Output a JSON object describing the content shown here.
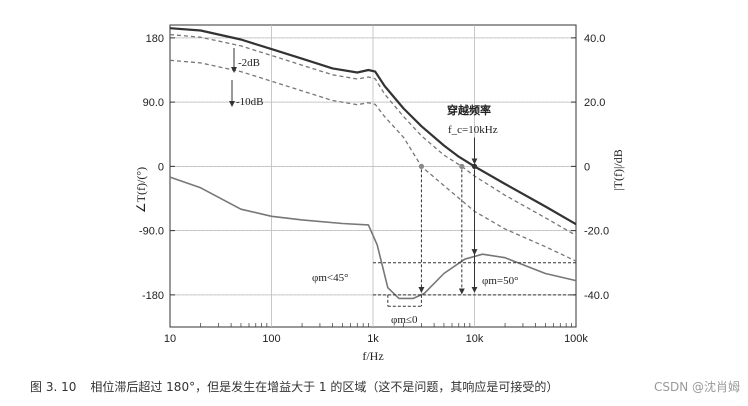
{
  "chart_data": {
    "type": "line",
    "x_scale": "log",
    "xlim": [
      10,
      100000
    ],
    "xlabel": "f/Hz",
    "x_ticks": [
      {
        "value": 10,
        "label": "10"
      },
      {
        "value": 100,
        "label": "100"
      },
      {
        "value": 1000,
        "label": "1k"
      },
      {
        "value": 10000,
        "label": "10k"
      },
      {
        "value": 100000,
        "label": "100k"
      }
    ],
    "left_axis": {
      "label": "∠T(f)/(°)",
      "ylim": [
        -225,
        198
      ],
      "ticks": [
        {
          "value": 180,
          "label": "180"
        },
        {
          "value": 90,
          "label": "90.0"
        },
        {
          "value": 0,
          "label": "0"
        },
        {
          "value": -90,
          "label": "-90.0"
        },
        {
          "value": -180,
          "label": "-180"
        }
      ]
    },
    "right_axis": {
      "label": "|T(f)|/dB",
      "ylim": [
        -50,
        44
      ],
      "ticks": [
        {
          "value": 40,
          "label": "40.0"
        },
        {
          "value": 20,
          "label": "20.0"
        },
        {
          "value": 0,
          "label": "0"
        },
        {
          "value": -20,
          "label": "-20.0"
        },
        {
          "value": -40,
          "label": "-40.0"
        }
      ]
    },
    "grid": true,
    "series": [
      {
        "axis": "right",
        "style": "solid-thick",
        "color": "#333333",
        "points": [
          [
            10,
            43
          ],
          [
            20,
            42.3
          ],
          [
            50,
            39.5
          ],
          [
            100,
            36.5
          ],
          [
            200,
            33.5
          ],
          [
            400,
            30.5
          ],
          [
            700,
            29.2
          ],
          [
            900,
            30.0
          ],
          [
            1050,
            29.5
          ],
          [
            1300,
            25
          ],
          [
            2000,
            18
          ],
          [
            3000,
            12.5
          ],
          [
            5000,
            6.5
          ],
          [
            7000,
            3
          ],
          [
            10000,
            0
          ],
          [
            20000,
            -5.5
          ],
          [
            50000,
            -12.5
          ],
          [
            100000,
            -18
          ]
        ]
      },
      {
        "axis": "right",
        "style": "dashed",
        "color": "#777777",
        "label": "-2dB",
        "points": [
          [
            10,
            41
          ],
          [
            20,
            40.2
          ],
          [
            50,
            37.5
          ],
          [
            100,
            34.5
          ],
          [
            200,
            31.5
          ],
          [
            400,
            28.5
          ],
          [
            700,
            27.2
          ],
          [
            900,
            27.8
          ],
          [
            1050,
            27.3
          ],
          [
            1300,
            22.5
          ],
          [
            2000,
            15.5
          ],
          [
            3000,
            9.5
          ],
          [
            5000,
            3.5
          ],
          [
            7500,
            0
          ],
          [
            10000,
            -3
          ],
          [
            20000,
            -9
          ],
          [
            50000,
            -16
          ],
          [
            100000,
            -21.5
          ]
        ]
      },
      {
        "axis": "right",
        "style": "dashed",
        "color": "#777777",
        "label": "-10dB",
        "points": [
          [
            10,
            33
          ],
          [
            20,
            32.2
          ],
          [
            50,
            29.5
          ],
          [
            100,
            26.5
          ],
          [
            200,
            23.5
          ],
          [
            400,
            20.5
          ],
          [
            700,
            19.2
          ],
          [
            900,
            19.8
          ],
          [
            1050,
            19.3
          ],
          [
            1300,
            15.5
          ],
          [
            2000,
            9
          ],
          [
            3000,
            0
          ],
          [
            5000,
            -6
          ],
          [
            10000,
            -14
          ],
          [
            20000,
            -19.5
          ],
          [
            50000,
            -25
          ],
          [
            100000,
            -29.5
          ]
        ]
      },
      {
        "axis": "left",
        "style": "solid-gray",
        "color": "#777777",
        "label": "∠T(f)",
        "points": [
          [
            10,
            -15
          ],
          [
            20,
            -30
          ],
          [
            50,
            -60
          ],
          [
            100,
            -70
          ],
          [
            200,
            -75
          ],
          [
            500,
            -80
          ],
          [
            900,
            -82
          ],
          [
            1100,
            -110
          ],
          [
            1400,
            -170
          ],
          [
            1800,
            -185
          ],
          [
            2500,
            -185
          ],
          [
            3200,
            -178
          ],
          [
            5000,
            -150
          ],
          [
            8000,
            -130
          ],
          [
            12000,
            -123
          ],
          [
            20000,
            -128
          ],
          [
            50000,
            -150
          ],
          [
            100000,
            -160
          ]
        ]
      }
    ],
    "annotations": [
      {
        "text": "-2dB"
      },
      {
        "text": "-10dB"
      },
      {
        "text": "穿越频率"
      },
      {
        "text": "f_c=10kHz"
      },
      {
        "text": "φm<45°"
      },
      {
        "text": "φm=50°"
      },
      {
        "text": "φm≤0"
      }
    ]
  },
  "caption": {
    "number": "图 3. 10",
    "text": "相位滞后超过 180°，但是发生在增益大于 1 的区域（这不是问题，其响应是可接受的）",
    "watermark": "CSDN @沈肖姆"
  },
  "colors": {
    "line_dark": "#333333",
    "line_gray": "#777777",
    "grid": "#bbbbbb"
  }
}
